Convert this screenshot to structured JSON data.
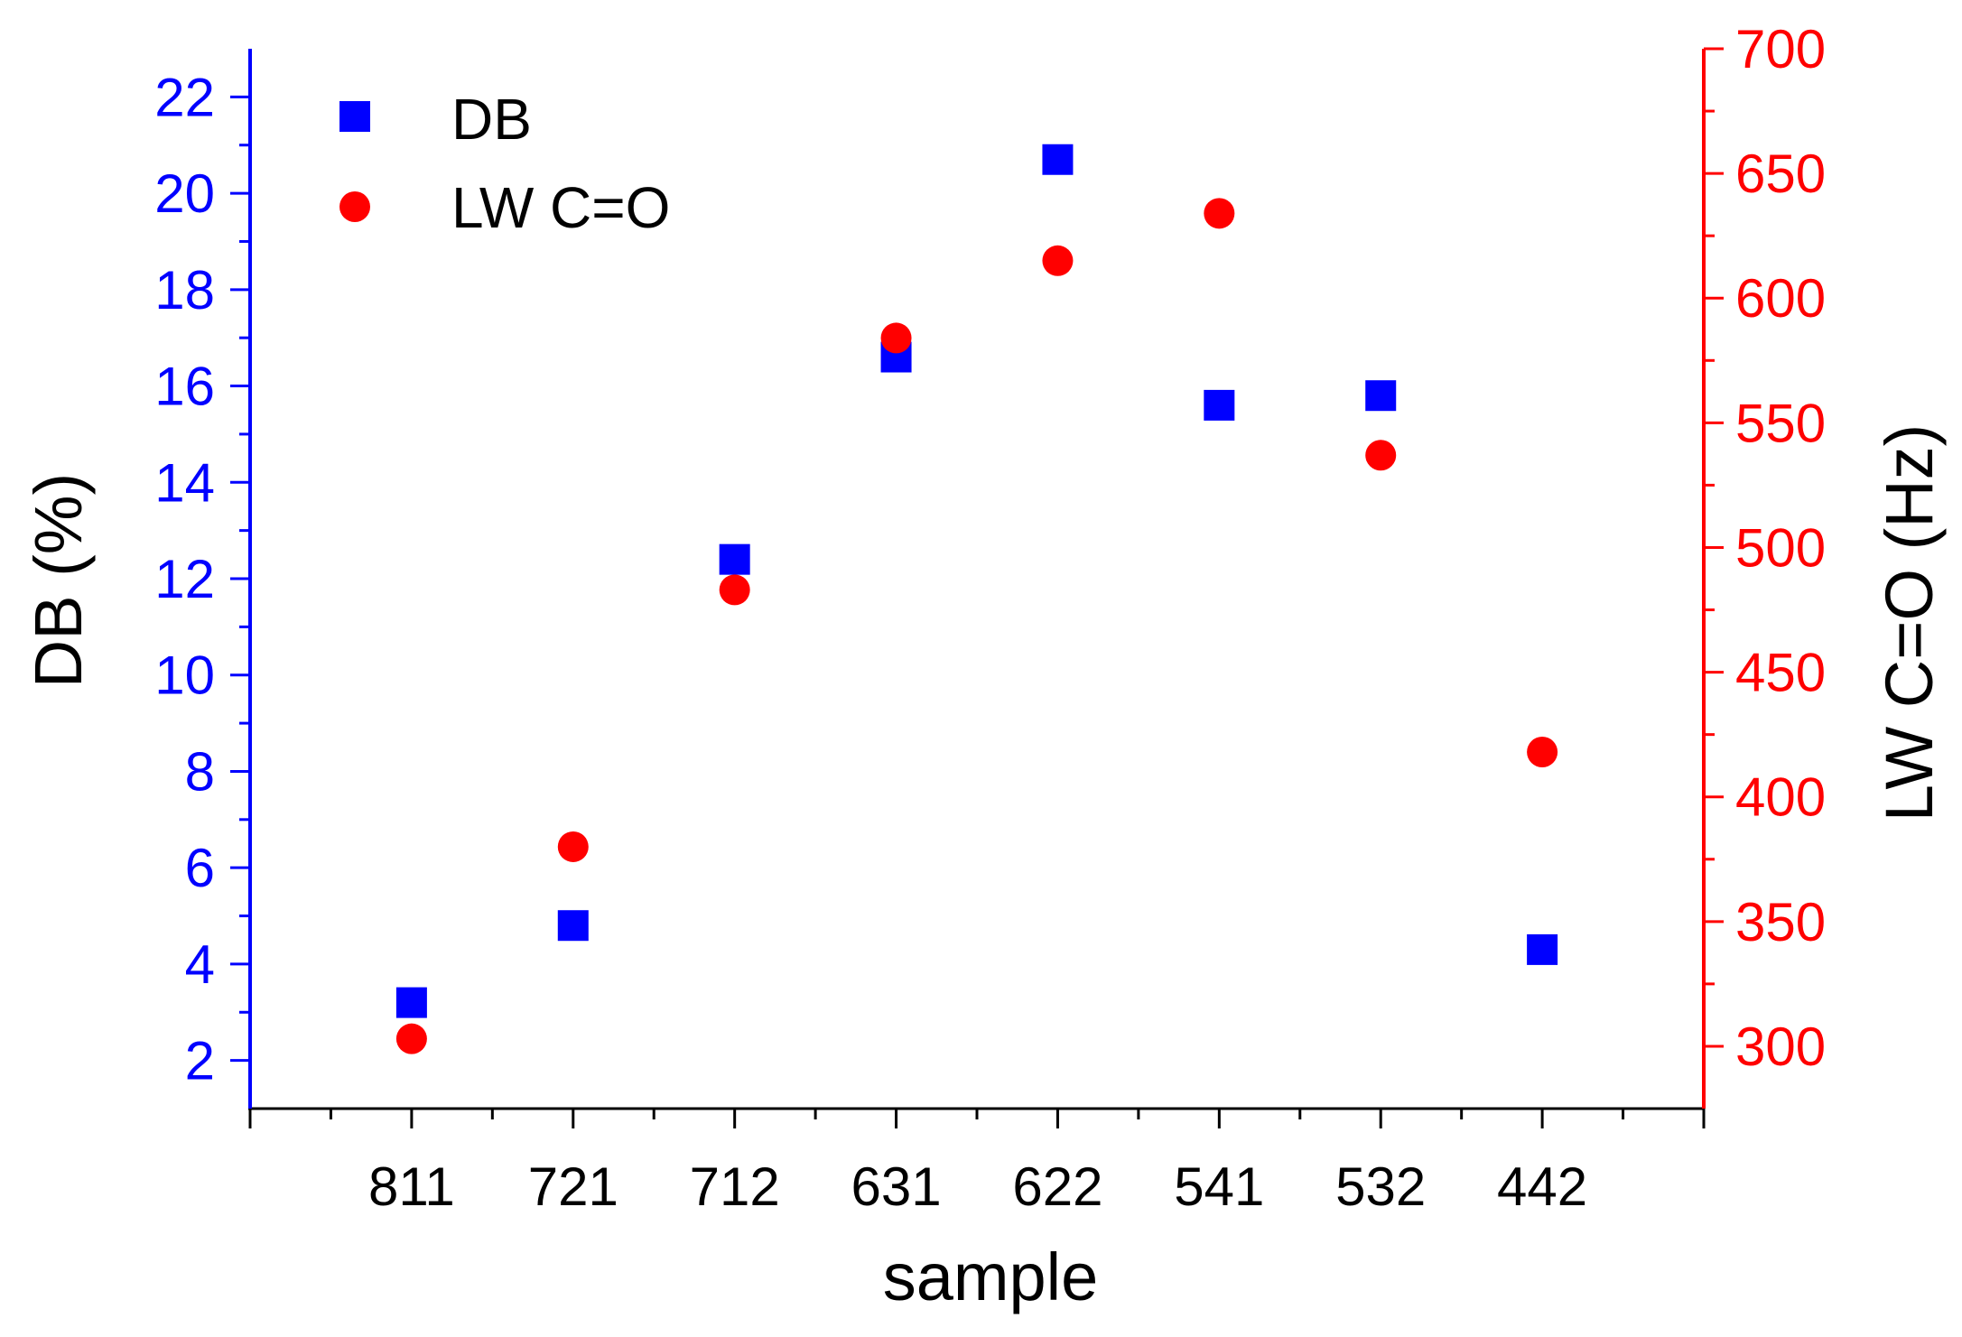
{
  "chart_data": {
    "type": "scatter",
    "categories": [
      "811",
      "721",
      "712",
      "631",
      "622",
      "541",
      "532",
      "442"
    ],
    "xlabel": "sample",
    "series": [
      {
        "name": "DB",
        "axis": "left",
        "marker": "square",
        "color": "#0000ff",
        "values": [
          3.2,
          4.8,
          12.4,
          16.6,
          20.7,
          15.6,
          15.8,
          4.3
        ]
      },
      {
        "name": "LW C=O",
        "axis": "right",
        "marker": "circle",
        "color": "#ff0000",
        "values": [
          303,
          380,
          483,
          584,
          615,
          634,
          537,
          418
        ]
      }
    ],
    "y_left": {
      "label": "DB (%)",
      "range": [
        1,
        23
      ],
      "ticks": [
        "2",
        "4",
        "6",
        "8",
        "10",
        "12",
        "14",
        "16",
        "18",
        "20",
        "22"
      ],
      "color": "#0000ff"
    },
    "y_right": {
      "label": "LW C=O (Hz)",
      "range": [
        275,
        700
      ],
      "ticks": [
        "300",
        "350",
        "400",
        "450",
        "500",
        "550",
        "600",
        "650",
        "700"
      ],
      "color": "#ff0000"
    },
    "legend": {
      "position": "top-left",
      "entries": [
        "DB",
        "LW C=O"
      ]
    },
    "grid": false
  }
}
